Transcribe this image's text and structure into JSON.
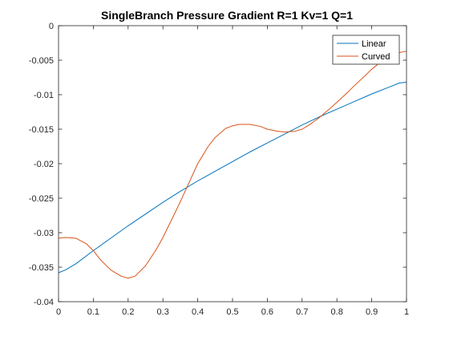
{
  "chart_data": {
    "type": "line",
    "title": "SingleBranch Pressure Gradient R=1 Kv=1 Q=1",
    "xlabel": "",
    "ylabel": "",
    "xlim": [
      0,
      1
    ],
    "ylim": [
      -0.04,
      0
    ],
    "xticks": [
      "0",
      "0.1",
      "0.2",
      "0.3",
      "0.4",
      "0.5",
      "0.6",
      "0.7",
      "0.8",
      "0.9",
      "1"
    ],
    "yticks": [
      "0",
      "-0.005",
      "-0.01",
      "-0.015",
      "-0.02",
      "-0.025",
      "-0.03",
      "-0.035",
      "-0.04"
    ],
    "grid": false,
    "legend_position": "top-right",
    "series": [
      {
        "name": "Linear",
        "color": "#0072BD",
        "x": [
          0,
          0.02,
          0.05,
          0.1,
          0.15,
          0.2,
          0.25,
          0.3,
          0.35,
          0.4,
          0.45,
          0.5,
          0.55,
          0.6,
          0.65,
          0.7,
          0.75,
          0.8,
          0.85,
          0.9,
          0.95,
          0.98,
          1
        ],
        "y": [
          -0.0358,
          -0.0354,
          -0.0345,
          -0.0326,
          -0.0308,
          -0.029,
          -0.0273,
          -0.0256,
          -0.024,
          -0.0225,
          -0.0211,
          -0.0197,
          -0.0183,
          -0.017,
          -0.0157,
          -0.0144,
          -0.0132,
          -0.0121,
          -0.011,
          -0.0099,
          -0.0089,
          -0.0083,
          -0.0082
        ]
      },
      {
        "name": "Curved",
        "color": "#D95319",
        "x": [
          0,
          0.02,
          0.05,
          0.08,
          0.1,
          0.12,
          0.15,
          0.18,
          0.2,
          0.22,
          0.25,
          0.28,
          0.3,
          0.33,
          0.35,
          0.38,
          0.4,
          0.43,
          0.45,
          0.48,
          0.5,
          0.52,
          0.55,
          0.58,
          0.6,
          0.63,
          0.65,
          0.68,
          0.7,
          0.72,
          0.75,
          0.78,
          0.8,
          0.83,
          0.85,
          0.88,
          0.9,
          0.93,
          0.95,
          0.98,
          1
        ],
        "y": [
          -0.0308,
          -0.0307,
          -0.0308,
          -0.0316,
          -0.0326,
          -0.0339,
          -0.0354,
          -0.0363,
          -0.0366,
          -0.0363,
          -0.0348,
          -0.0325,
          -0.0307,
          -0.0276,
          -0.0255,
          -0.0222,
          -0.02,
          -0.0175,
          -0.0162,
          -0.0149,
          -0.0145,
          -0.0143,
          -0.0143,
          -0.0146,
          -0.015,
          -0.0153,
          -0.0154,
          -0.0153,
          -0.015,
          -0.0144,
          -0.0133,
          -0.012,
          -0.0111,
          -0.0097,
          -0.0087,
          -0.0073,
          -0.0063,
          -0.0051,
          -0.0045,
          -0.0039,
          -0.0037
        ]
      }
    ]
  }
}
